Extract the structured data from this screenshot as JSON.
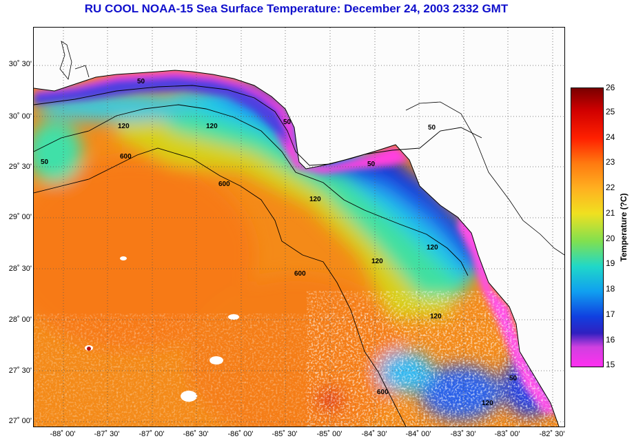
{
  "title": "RU COOL  NOAA-15  Sea Surface Temperature:  December 24, 2003 2332 GMT",
  "lat_labels": [
    "30˚ 30'",
    "30˚ 00'",
    "29˚ 30'",
    "29˚ 00'",
    "28˚ 30'",
    "28˚ 00'",
    "27˚ 30'",
    "27˚ 00'"
  ],
  "lon_labels": [
    "-88˚ 00'",
    "-87˚ 30'",
    "-87˚ 00'",
    "-86˚ 30'",
    "-86˚ 00'",
    "-85˚ 30'",
    "-85˚ 00'",
    "-84˚ 30'",
    "-84˚ 00'",
    "-83˚ 30'",
    "-83˚ 00'",
    "-82˚ 30'"
  ],
  "colorbar": {
    "title": "Temperature (?C)",
    "ticks": [
      "26",
      "25",
      "24",
      "23",
      "22",
      "21",
      "20",
      "19",
      "18",
      "17",
      "16",
      "15"
    ],
    "min": 15,
    "max": 26
  },
  "contours": {
    "c50a": "50",
    "c50b": "50",
    "c50c": "50",
    "c50d": "50",
    "c50e": "50",
    "c50f": "50",
    "c120a": "120",
    "c120b": "120",
    "c120c": "120",
    "c120d": "120",
    "c120e": "120",
    "c120f": "120",
    "c120g": "120",
    "c600a": "600",
    "c600b": "600",
    "c600c": "600",
    "c600d": "600"
  }
}
